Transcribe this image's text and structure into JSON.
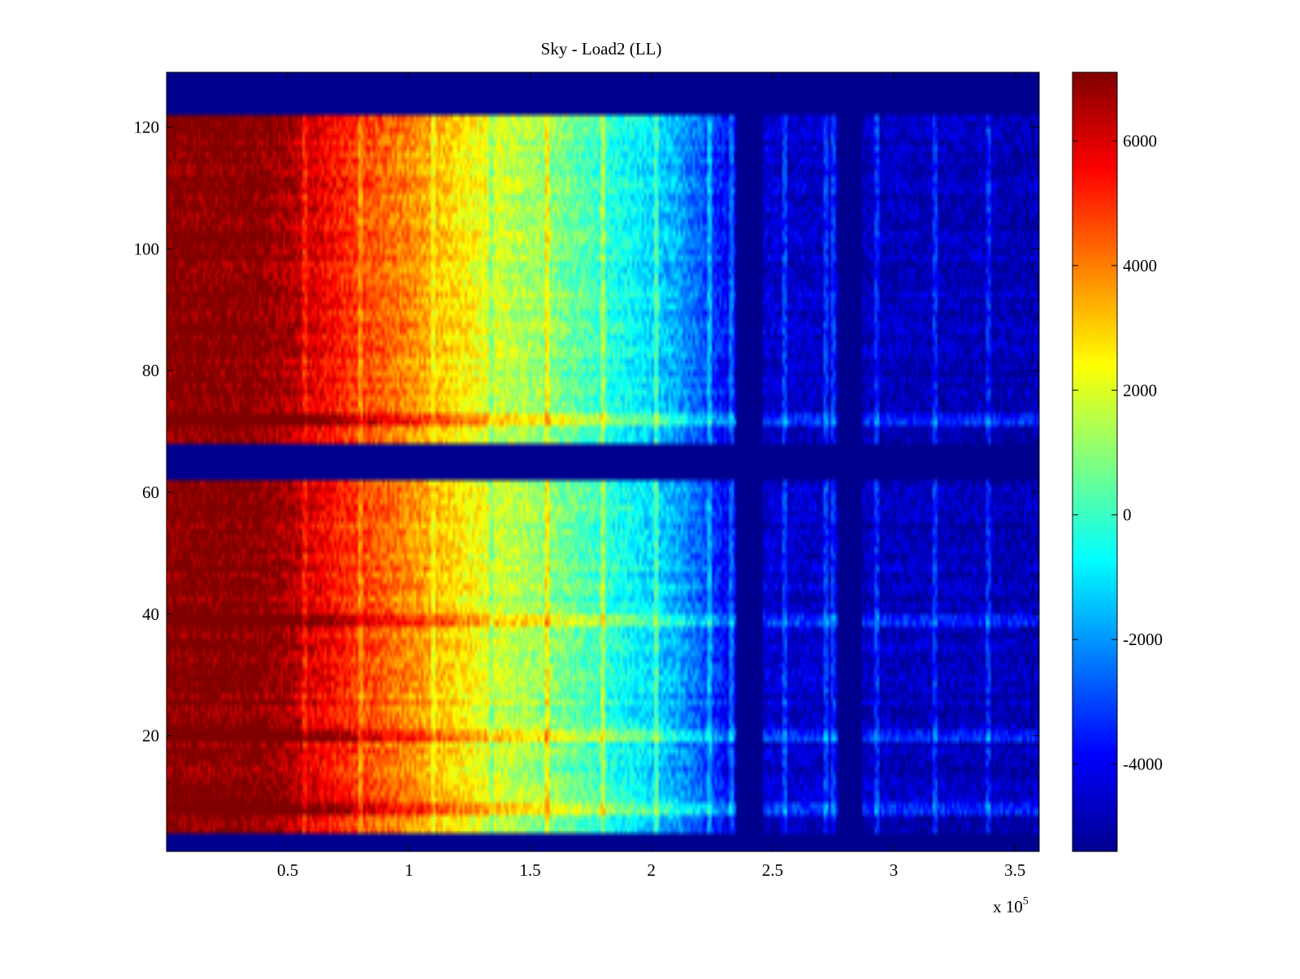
{
  "chart_data": {
    "type": "heatmap",
    "title": "Sky - Load2 (LL)",
    "xlabel": "",
    "ylabel": "",
    "x_exponent_label": "x 10",
    "x_exponent_power": "5",
    "xlim": [
      0,
      3.6
    ],
    "ylim": [
      1,
      129
    ],
    "x_ticks": [
      0.5,
      1,
      1.5,
      2,
      2.5,
      3,
      3.5
    ],
    "x_tick_labels": [
      "0.5",
      "1",
      "1.5",
      "2",
      "2.5",
      "3",
      "3.5"
    ],
    "y_ticks": [
      20,
      40,
      60,
      80,
      100,
      120
    ],
    "y_tick_labels": [
      "20",
      "40",
      "60",
      "80",
      "100",
      "120"
    ],
    "colorbar": {
      "range": [
        -5400,
        7100
      ],
      "ticks": [
        -4000,
        -2000,
        0,
        2000,
        4000,
        6000
      ],
      "tick_labels": [
        "-4000",
        "-2000",
        "0",
        "2000",
        "4000",
        "6000"
      ],
      "colormap": "jet"
    },
    "colormap_stops": [
      "#00008f",
      "#0000ff",
      "#00ffff",
      "#ffff00",
      "#ff0000",
      "#800000"
    ],
    "fill_value": -5400,
    "masked_rows": [
      [
        1,
        4
      ],
      [
        62,
        68
      ],
      [
        122,
        129
      ]
    ],
    "masked_columns": [
      [
        2.35,
        2.46
      ],
      [
        2.77,
        2.87
      ]
    ],
    "value_profile": {
      "x": [
        0,
        0.35,
        0.5,
        0.62,
        0.75,
        0.9,
        1.05,
        1.2,
        1.35,
        1.6,
        1.9,
        2.1,
        2.25,
        2.35,
        2.5,
        2.8,
        3.6
      ],
      "value": [
        7100,
        7100,
        6600,
        5800,
        5000,
        4300,
        3600,
        2700,
        1900,
        900,
        -600,
        -1700,
        -3200,
        -4200,
        -4500,
        -4700,
        -4900
      ]
    },
    "line_features": [
      0.57,
      0.8,
      1.1,
      1.34,
      1.57,
      1.8,
      2.02,
      2.24,
      2.33,
      2.55,
      2.72,
      2.75,
      2.93,
      3.17,
      3.39
    ],
    "highlight_rows": [
      39,
      72,
      8,
      20
    ]
  }
}
